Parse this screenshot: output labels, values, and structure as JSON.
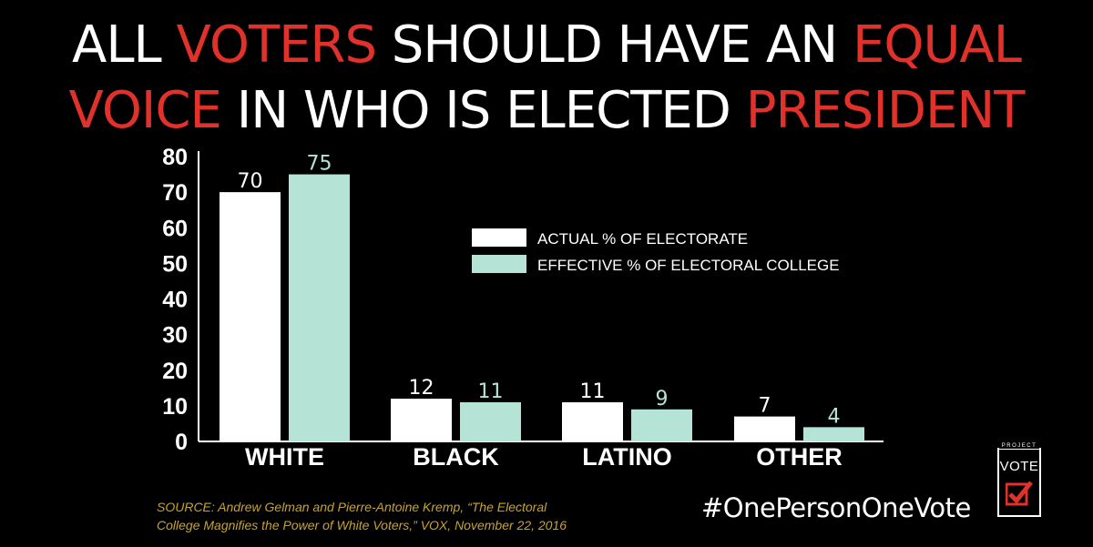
{
  "title": {
    "line1": [
      {
        "text": "ALL ",
        "hl": false
      },
      {
        "text": "VOTERS",
        "hl": true
      },
      {
        "text": " SHOULD HAVE AN ",
        "hl": false
      },
      {
        "text": "EQUAL",
        "hl": true
      }
    ],
    "line2": [
      {
        "text": "VOICE",
        "hl": true
      },
      {
        "text": " IN WHO IS ELECTED ",
        "hl": false
      },
      {
        "text": "PRESIDENT",
        "hl": true
      }
    ]
  },
  "colors": {
    "background": "#000000",
    "highlight": "#e0312a",
    "actual": "#ffffff",
    "effective": "#b5e3d6",
    "effective_label": "#b5e3d6",
    "source": "#c9a22e"
  },
  "chart_data": {
    "type": "bar",
    "categories": [
      "WHITE",
      "BLACK",
      "LATINO",
      "OTHER"
    ],
    "series": [
      {
        "name": "ACTUAL % OF ELECTORATE",
        "values": [
          70,
          12,
          11,
          7
        ]
      },
      {
        "name": "EFFECTIVE % OF ELECTORAL COLLEGE",
        "values": [
          75,
          11,
          9,
          4
        ]
      }
    ],
    "ylim": [
      0,
      80
    ],
    "yticks": [
      0,
      10,
      20,
      30,
      40,
      50,
      60,
      70,
      80
    ],
    "legend_position": "right",
    "grid": false
  },
  "source": {
    "line1": "SOURCE: Andrew Gelman and Pierre-Antoine Kremp, “The Electoral",
    "line2": "College Magnifies the Power of White Voters,” VOX, November 22, 2016"
  },
  "hashtag": "#OnePersonOneVote",
  "logo": {
    "small": "PROJECT",
    "big": "VOTE",
    "icon": "checkbox-check-icon"
  }
}
